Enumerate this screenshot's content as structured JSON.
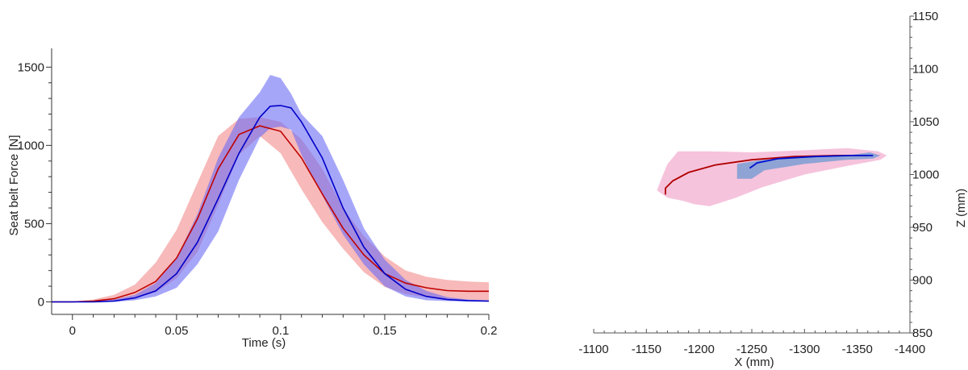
{
  "chart_data": [
    {
      "type": "line",
      "xlabel": "Time (s)",
      "ylabel": "Seat belt Force [N]",
      "xlim": [
        -0.01,
        0.2
      ],
      "ylim": [
        -80,
        1620
      ],
      "x_ticks": [
        0,
        0.05,
        0.1,
        0.15,
        0.2
      ],
      "x_tick_labels": [
        "0",
        "0.05",
        "0.1",
        "0.15",
        "0.2"
      ],
      "y_ticks": [
        0,
        500,
        1000,
        1500
      ],
      "y_tick_labels": [
        "0",
        "500",
        "1000",
        "1500"
      ],
      "grid": false,
      "legend": "none",
      "series": [
        {
          "color": "#c00000",
          "band_color": "#f28a8a",
          "x": [
            -0.01,
            0,
            0.01,
            0.02,
            0.03,
            0.04,
            0.05,
            0.06,
            0.07,
            0.08,
            0.09,
            0.1,
            0.11,
            0.12,
            0.13,
            0.14,
            0.15,
            0.16,
            0.17,
            0.18,
            0.19,
            0.2
          ],
          "mean": [
            0,
            0,
            5,
            20,
            60,
            130,
            280,
            530,
            850,
            1070,
            1125,
            1090,
            920,
            690,
            470,
            300,
            180,
            120,
            90,
            72,
            68,
            68
          ],
          "lower": [
            0,
            0,
            0,
            5,
            25,
            60,
            150,
            320,
            620,
            940,
            1060,
            950,
            720,
            510,
            340,
            190,
            95,
            50,
            30,
            20,
            15,
            10
          ],
          "upper": [
            0,
            2,
            15,
            45,
            110,
            250,
            460,
            760,
            1060,
            1170,
            1180,
            1150,
            1040,
            850,
            600,
            420,
            290,
            200,
            160,
            140,
            130,
            125
          ]
        },
        {
          "color": "#0000c8",
          "band_color": "#6b6bf5",
          "x": [
            -0.01,
            0,
            0.01,
            0.02,
            0.03,
            0.04,
            0.05,
            0.06,
            0.07,
            0.08,
            0.09,
            0.095,
            0.1,
            0.105,
            0.11,
            0.12,
            0.13,
            0.14,
            0.15,
            0.16,
            0.17,
            0.18,
            0.19,
            0.2
          ],
          "mean": [
            0,
            0,
            0,
            5,
            25,
            70,
            180,
            380,
            660,
            950,
            1180,
            1250,
            1255,
            1240,
            1150,
            920,
            600,
            350,
            180,
            80,
            35,
            15,
            8,
            5
          ],
          "lower": [
            0,
            0,
            0,
            0,
            10,
            35,
            90,
            240,
            450,
            780,
            1050,
            1110,
            1120,
            1100,
            940,
            680,
            430,
            240,
            100,
            35,
            10,
            5,
            2,
            0
          ],
          "upper": [
            0,
            2,
            5,
            15,
            45,
            120,
            280,
            560,
            920,
            1180,
            1340,
            1450,
            1430,
            1330,
            1200,
            1060,
            780,
            470,
            270,
            140,
            70,
            30,
            15,
            10
          ]
        }
      ]
    },
    {
      "type": "line",
      "xlabel": "X (mm)",
      "ylabel": "Z (mm)",
      "xlim": [
        -1100,
        -1400
      ],
      "ylim": [
        850,
        1150
      ],
      "x_ticks": [
        -1100,
        -1150,
        -1200,
        -1250,
        -1300,
        -1350,
        -1400
      ],
      "x_tick_labels": [
        "-1100",
        "-1150",
        "-1200",
        "-1250",
        "-1300",
        "-1350",
        "-1400"
      ],
      "y_ticks": [
        850,
        900,
        950,
        1000,
        1050,
        1100,
        1150
      ],
      "y_tick_labels": [
        "850",
        "900",
        "950",
        "1000",
        "1050",
        "1100",
        "1150"
      ],
      "grid": false,
      "legend": "none",
      "regions": [
        {
          "color": "#f5b9d6",
          "x": [
            -1160,
            -1165,
            -1170,
            -1180,
            -1210,
            -1250,
            -1300,
            -1340,
            -1370,
            -1378,
            -1372,
            -1340,
            -1300,
            -1260,
            -1235,
            -1210,
            -1195,
            -1185,
            -1170,
            -1160
          ],
          "y": [
            985,
            998,
            1010,
            1022,
            1022,
            1021,
            1023,
            1025,
            1022,
            1018,
            1014,
            1008,
            1000,
            988,
            978,
            970,
            972,
            975,
            978,
            985
          ]
        },
        {
          "color": "#7d9dd4",
          "x": [
            -1236,
            -1236,
            -1260,
            -1300,
            -1340,
            -1362,
            -1372,
            -1365,
            -1340,
            -1300,
            -1262,
            -1250,
            -1236
          ],
          "y": [
            996,
            1010,
            1014,
            1016,
            1018,
            1021,
            1018,
            1015,
            1014,
            1010,
            1004,
            996,
            996
          ]
        }
      ],
      "series": [
        {
          "color": "#b00000",
          "x": [
            -1168,
            -1168,
            -1175,
            -1190,
            -1215,
            -1250,
            -1290,
            -1330,
            -1360
          ],
          "y": [
            981,
            987,
            994,
            1002,
            1009,
            1014,
            1017,
            1018,
            1018
          ]
        },
        {
          "color": "#0010d0",
          "x": [
            -1248,
            -1255,
            -1275,
            -1310,
            -1345,
            -1365
          ],
          "y": [
            1006,
            1011,
            1015,
            1017,
            1018,
            1018
          ]
        }
      ]
    }
  ]
}
